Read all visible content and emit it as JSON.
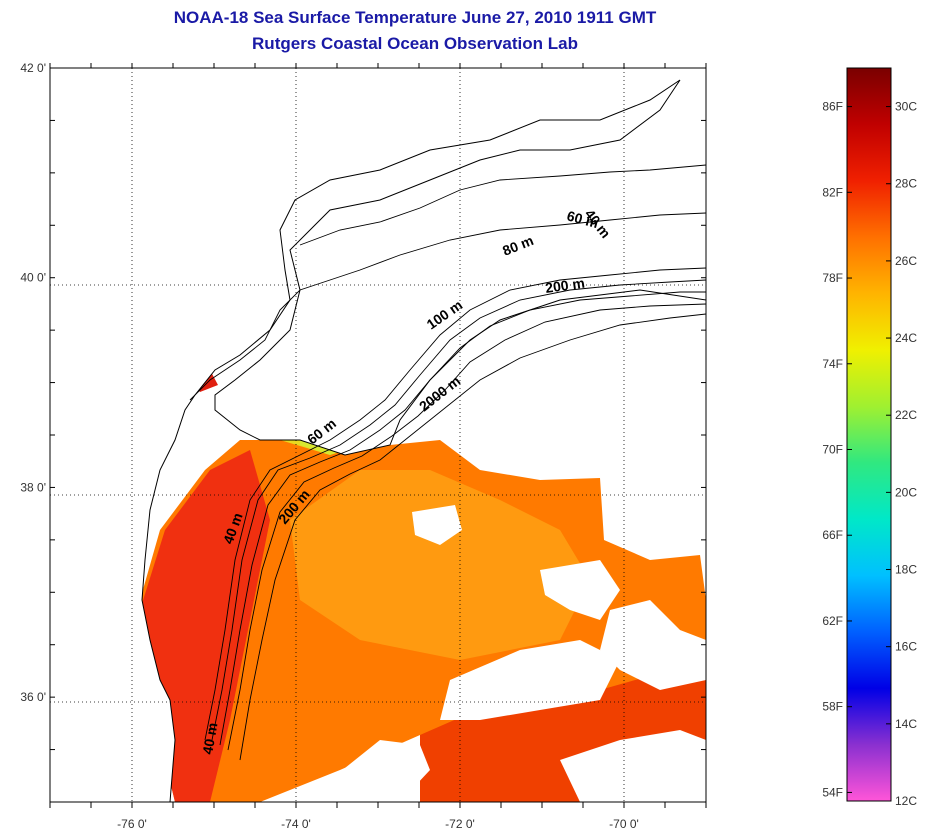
{
  "title": "NOAA-18 Sea Surface Temperature June 27, 2010 1911 GMT",
  "subtitle": "Rutgers Coastal Ocean Observation Lab",
  "map": {
    "lon_range": [
      -77.0,
      -69.0
    ],
    "lat_range": [
      35.0,
      42.0
    ],
    "lat_labels": [
      {
        "value": 42,
        "text": "42 0'"
      },
      {
        "value": 40,
        "text": "40 0'"
      },
      {
        "value": 38,
        "text": "38 0'"
      },
      {
        "value": 36,
        "text": "36 0'"
      }
    ],
    "lon_labels": [
      {
        "value": -76,
        "text": "-76 0'"
      },
      {
        "value": -74,
        "text": "-74 0'"
      },
      {
        "value": -72,
        "text": "-72 0'"
      },
      {
        "value": -70,
        "text": "-70 0'"
      }
    ],
    "depth_labels": [
      "40 m",
      "60 m",
      "80 m",
      "100 m",
      "200 m",
      "2000 m",
      "60 m",
      "200 m",
      "40 m",
      "40 m"
    ],
    "grid": "dotted"
  },
  "colorbar": {
    "range_c": [
      12,
      31
    ],
    "fahrenheit_labels": [
      "86F",
      "82F",
      "78F",
      "74F",
      "70F",
      "66F",
      "62F",
      "58F",
      "54F"
    ],
    "celsius_labels": [
      "30C",
      "28C",
      "26C",
      "24C",
      "22C",
      "20C",
      "18C",
      "16C",
      "14C",
      "12C"
    ],
    "colors": [
      "#ff55d8",
      "#8a30d0",
      "#0000e6",
      "#0060ff",
      "#00c0ff",
      "#00e8c8",
      "#30e880",
      "#a0f030",
      "#f0f000",
      "#ffb400",
      "#ff7000",
      "#f02000",
      "#c00000",
      "#7a0000"
    ]
  }
}
